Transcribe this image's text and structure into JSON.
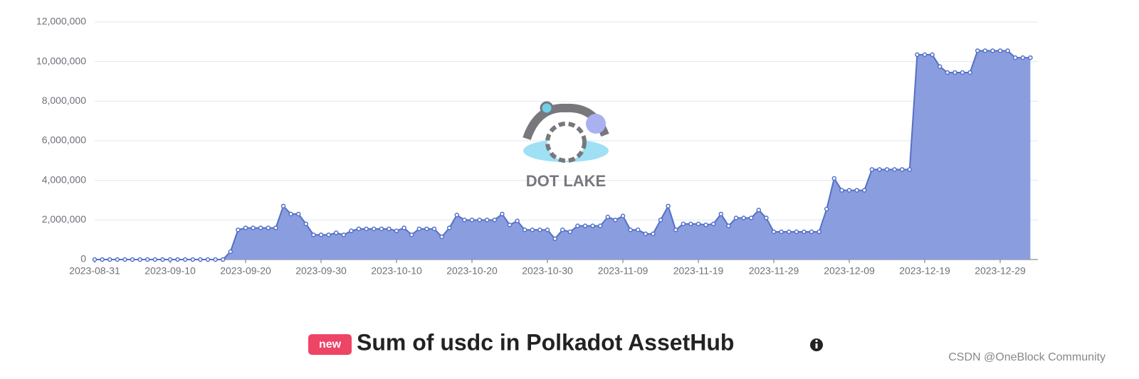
{
  "chart_data": {
    "type": "line",
    "title": "Sum of usdc in Polkadot AssetHub",
    "badge": "new",
    "logo_text": "DOT LAKE",
    "watermark": "CSDN @OneBlock Community",
    "x": [
      "2023-08-31",
      "2023-09-01",
      "2023-09-02",
      "2023-09-03",
      "2023-09-04",
      "2023-09-05",
      "2023-09-06",
      "2023-09-07",
      "2023-09-08",
      "2023-09-09",
      "2023-09-10",
      "2023-09-11",
      "2023-09-12",
      "2023-09-13",
      "2023-09-14",
      "2023-09-15",
      "2023-09-16",
      "2023-09-17",
      "2023-09-18",
      "2023-09-19",
      "2023-09-20",
      "2023-09-21",
      "2023-09-22",
      "2023-09-23",
      "2023-09-24",
      "2023-09-25",
      "2023-09-26",
      "2023-09-27",
      "2023-09-28",
      "2023-09-29",
      "2023-09-30",
      "2023-10-01",
      "2023-10-02",
      "2023-10-03",
      "2023-10-04",
      "2023-10-05",
      "2023-10-06",
      "2023-10-07",
      "2023-10-08",
      "2023-10-09",
      "2023-10-10",
      "2023-10-11",
      "2023-10-12",
      "2023-10-13",
      "2023-10-14",
      "2023-10-15",
      "2023-10-16",
      "2023-10-17",
      "2023-10-18",
      "2023-10-19",
      "2023-10-20",
      "2023-10-21",
      "2023-10-22",
      "2023-10-23",
      "2023-10-24",
      "2023-10-25",
      "2023-10-26",
      "2023-10-27",
      "2023-10-28",
      "2023-10-29",
      "2023-10-30",
      "2023-10-31",
      "2023-11-01",
      "2023-11-02",
      "2023-11-03",
      "2023-11-04",
      "2023-11-05",
      "2023-11-06",
      "2023-11-07",
      "2023-11-08",
      "2023-11-09",
      "2023-11-10",
      "2023-11-11",
      "2023-11-12",
      "2023-11-13",
      "2023-11-14",
      "2023-11-15",
      "2023-11-16",
      "2023-11-17",
      "2023-11-18",
      "2023-11-19",
      "2023-11-20",
      "2023-11-21",
      "2023-11-22",
      "2023-11-23",
      "2023-11-24",
      "2023-11-25",
      "2023-11-26",
      "2023-11-27",
      "2023-11-28",
      "2023-11-29",
      "2023-11-30",
      "2023-12-01",
      "2023-12-02",
      "2023-12-03",
      "2023-12-04",
      "2023-12-05",
      "2023-12-06",
      "2023-12-07",
      "2023-12-08",
      "2023-12-09",
      "2023-12-10",
      "2023-12-11",
      "2023-12-12",
      "2023-12-13",
      "2023-12-14",
      "2023-12-15",
      "2023-12-16",
      "2023-12-17",
      "2023-12-18",
      "2023-12-19",
      "2023-12-20",
      "2023-12-21",
      "2023-12-22",
      "2023-12-23",
      "2023-12-24",
      "2023-12-25",
      "2023-12-26",
      "2023-12-27",
      "2023-12-28",
      "2023-12-29",
      "2023-12-30",
      "2023-12-31",
      "2024-01-01",
      "2024-01-02"
    ],
    "series": [
      {
        "color": "#5470c6",
        "area_color": "#8a9ddf",
        "values": [
          0,
          0,
          0,
          0,
          0,
          0,
          0,
          0,
          0,
          0,
          0,
          0,
          0,
          0,
          0,
          0,
          0,
          0,
          400000,
          1500000,
          1600000,
          1600000,
          1600000,
          1600000,
          1600000,
          2700000,
          2300000,
          2300000,
          1800000,
          1250000,
          1250000,
          1250000,
          1350000,
          1250000,
          1450000,
          1550000,
          1550000,
          1550000,
          1550000,
          1550000,
          1450000,
          1600000,
          1250000,
          1550000,
          1550000,
          1550000,
          1150000,
          1600000,
          2250000,
          2000000,
          2000000,
          2000000,
          2000000,
          2000000,
          2300000,
          1750000,
          1950000,
          1500000,
          1500000,
          1500000,
          1500000,
          1050000,
          1500000,
          1400000,
          1700000,
          1700000,
          1700000,
          1700000,
          2150000,
          2000000,
          2200000,
          1500000,
          1500000,
          1300000,
          1300000,
          2000000,
          2700000,
          1500000,
          1800000,
          1800000,
          1800000,
          1750000,
          1800000,
          2300000,
          1700000,
          2100000,
          2100000,
          2100000,
          2500000,
          2100000,
          1400000,
          1400000,
          1400000,
          1400000,
          1400000,
          1400000,
          1400000,
          2550000,
          4100000,
          3500000,
          3500000,
          3500000,
          3500000,
          4550000,
          4550000,
          4550000,
          4550000,
          4550000,
          4550000,
          10350000,
          10350000,
          10350000,
          9750000,
          9450000,
          9450000,
          9450000,
          9450000,
          10550000,
          10550000,
          10550000,
          10550000,
          10550000,
          10200000,
          10200000,
          10200000
        ]
      }
    ],
    "xlim": [
      "2023-08-31",
      "2024-01-03"
    ],
    "xticks": [
      "2023-08-31",
      "2023-09-10",
      "2023-09-20",
      "2023-09-30",
      "2023-10-10",
      "2023-10-20",
      "2023-10-30",
      "2023-11-09",
      "2023-11-19",
      "2023-11-29",
      "2023-12-09",
      "2023-12-19",
      "2023-12-29"
    ],
    "ylim": [
      0,
      12000000
    ],
    "yticks": [
      0,
      {
        "value": 2000000,
        "label": "2,000,000"
      },
      {
        "value": 4000000,
        "label": "4,000,000"
      },
      {
        "value": 6000000,
        "label": "6,000,000"
      },
      {
        "value": 8000000,
        "label": "8,000,000"
      },
      {
        "value": 10000000,
        "label": "10,000,000"
      },
      {
        "value": 12000000,
        "label": "12,000,000"
      }
    ],
    "grid": true
  }
}
